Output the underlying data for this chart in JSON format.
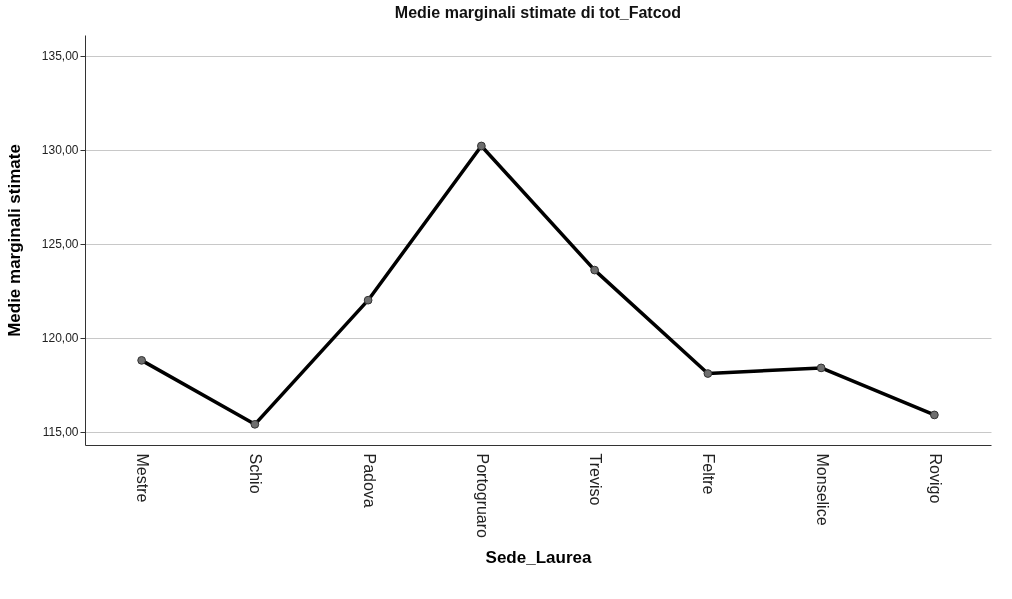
{
  "chart_data": {
    "type": "line",
    "title": "Medie marginali stimate di tot_Fatcod",
    "xlabel": "Sede_Laurea",
    "ylabel": "Medie marginali stimate",
    "categories": [
      "Mestre",
      "Schio",
      "Padova",
      "Portogruaro",
      "Treviso",
      "Feltre",
      "Monselice",
      "Rovigo"
    ],
    "series": [
      {
        "color": "#000000",
        "values": [
          118.8,
          115.4,
          122.0,
          130.2,
          123.6,
          118.1,
          118.4,
          115.9
        ]
      }
    ],
    "ylim": [
      114.3,
      136.1
    ],
    "yticks": [
      {
        "value": 115,
        "label": "115,00"
      },
      {
        "value": 120,
        "label": "120,00"
      },
      {
        "value": 125,
        "label": "125,00"
      },
      {
        "value": 130,
        "label": "130,00"
      },
      {
        "value": 135,
        "label": "135,00"
      }
    ],
    "grid": "y",
    "marker": "circle",
    "line_style": "solid",
    "legend": false
  }
}
